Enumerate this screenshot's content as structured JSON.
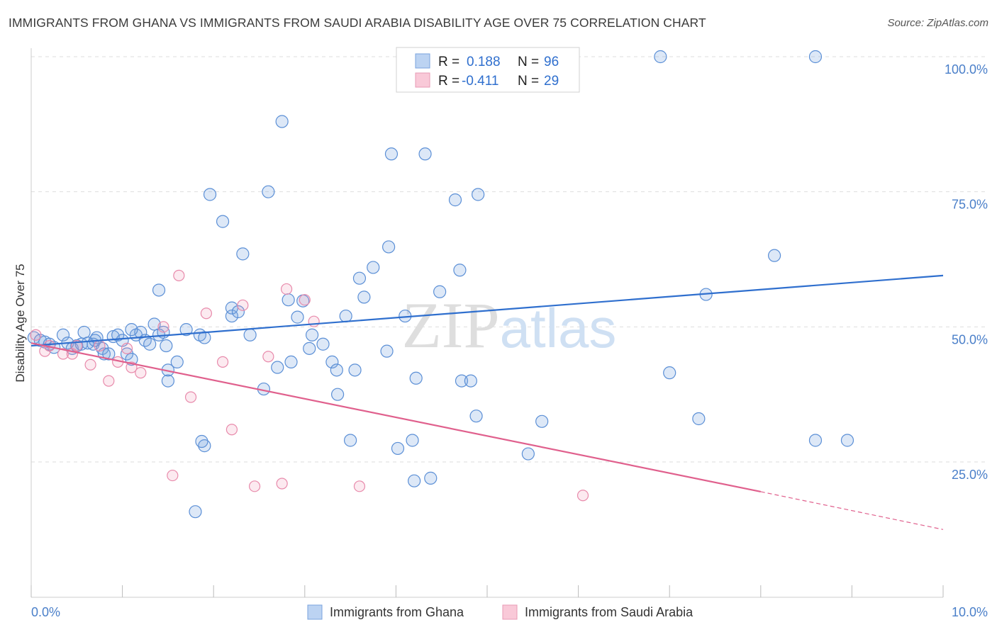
{
  "title": "IMMIGRANTS FROM GHANA VS IMMIGRANTS FROM SAUDI ARABIA DISABILITY AGE OVER 75 CORRELATION CHART",
  "source": "Source: ZipAtlas.com",
  "watermark": "ZIPatlas",
  "colors": {
    "ghana_fill": "rgba(120,165,225,0.25)",
    "ghana_stroke": "#5b8fd6",
    "ghana_line": "#2f6fce",
    "saudi_fill": "rgba(240,150,180,0.2)",
    "saudi_stroke": "#e88aab",
    "saudi_line": "#e0608d",
    "tick_text": "#4a7fc9",
    "grid": "#dddddd"
  },
  "legend": {
    "rows": [
      {
        "r_label": "R =",
        "r_value": "0.188",
        "n_label": "N =",
        "n_value": "96"
      },
      {
        "r_label": "R =",
        "r_value": "-0.411",
        "n_label": "N =",
        "n_value": "29"
      }
    ]
  },
  "bottom_legend": [
    "Immigrants from Ghana",
    "Immigrants from Saudi Arabia"
  ],
  "chart_data": {
    "type": "scatter",
    "title": "IMMIGRANTS FROM GHANA VS IMMIGRANTS FROM SAUDI ARABIA DISABILITY AGE OVER 75 CORRELATION CHART",
    "xlabel": "",
    "ylabel": "Disability Age Over 75",
    "xlim": [
      0,
      10
    ],
    "ylim": [
      0,
      103
    ],
    "x_tick_labels": [
      "0.0%",
      "10.0%"
    ],
    "y_tick_labels": [
      "25.0%",
      "50.0%",
      "75.0%",
      "100.0%"
    ],
    "y_ticks": [
      25,
      50,
      75,
      100
    ],
    "grid": true,
    "legend_position": "top-center",
    "series": [
      {
        "name": "Immigrants from Ghana",
        "R": 0.188,
        "N": 96,
        "trend": [
          [
            0.0,
            46.5
          ],
          [
            10.0,
            59.5
          ]
        ],
        "points": [
          [
            0.03,
            48.0
          ],
          [
            0.1,
            47.5
          ],
          [
            0.15,
            47.2
          ],
          [
            0.2,
            46.8
          ],
          [
            0.25,
            46.2
          ],
          [
            0.35,
            48.5
          ],
          [
            0.4,
            47.0
          ],
          [
            0.45,
            46.0
          ],
          [
            0.5,
            46.5
          ],
          [
            0.55,
            46.8
          ],
          [
            0.58,
            49.0
          ],
          [
            0.62,
            47.0
          ],
          [
            0.68,
            46.8
          ],
          [
            0.72,
            48.0
          ],
          [
            0.78,
            46.0
          ],
          [
            0.8,
            45.0
          ],
          [
            0.85,
            45.0
          ],
          [
            0.9,
            48.2
          ],
          [
            0.95,
            48.5
          ],
          [
            1.0,
            47.5
          ],
          [
            1.05,
            45.0
          ],
          [
            1.1,
            44.0
          ],
          [
            1.15,
            48.5
          ],
          [
            1.2,
            49.0
          ],
          [
            1.25,
            47.5
          ],
          [
            1.3,
            46.8
          ],
          [
            1.35,
            50.5
          ],
          [
            1.4,
            56.8
          ],
          [
            1.4,
            48.5
          ],
          [
            1.45,
            49.0
          ],
          [
            1.48,
            46.5
          ],
          [
            1.5,
            42.0
          ],
          [
            1.5,
            40.0
          ],
          [
            1.6,
            43.5
          ],
          [
            1.7,
            49.5
          ],
          [
            1.85,
            48.5
          ],
          [
            1.9,
            48.0
          ],
          [
            1.96,
            74.5
          ],
          [
            1.9,
            28.0
          ],
          [
            1.87,
            28.8
          ],
          [
            1.8,
            15.8
          ],
          [
            2.1,
            69.5
          ],
          [
            2.2,
            52.0
          ],
          [
            2.2,
            53.5
          ],
          [
            2.27,
            52.8
          ],
          [
            2.32,
            63.5
          ],
          [
            2.4,
            48.5
          ],
          [
            2.55,
            38.5
          ],
          [
            2.6,
            75.0
          ],
          [
            2.7,
            42.5
          ],
          [
            2.75,
            88.0
          ],
          [
            2.85,
            43.5
          ],
          [
            2.92,
            51.8
          ],
          [
            2.98,
            54.8
          ],
          [
            3.05,
            46.0
          ],
          [
            3.08,
            48.5
          ],
          [
            3.2,
            46.8
          ],
          [
            3.3,
            43.5
          ],
          [
            3.35,
            42.0
          ],
          [
            3.45,
            52.0
          ],
          [
            3.36,
            37.5
          ],
          [
            3.5,
            29.0
          ],
          [
            3.55,
            42.0
          ],
          [
            3.6,
            59.0
          ],
          [
            3.65,
            55.5
          ],
          [
            3.75,
            61.0
          ],
          [
            3.9,
            45.5
          ],
          [
            3.92,
            64.8
          ],
          [
            3.95,
            82.0
          ],
          [
            4.02,
            27.5
          ],
          [
            4.1,
            52.0
          ],
          [
            4.18,
            29.0
          ],
          [
            4.22,
            40.5
          ],
          [
            4.32,
            82.0
          ],
          [
            4.38,
            22.0
          ],
          [
            4.48,
            56.5
          ],
          [
            4.65,
            73.5
          ],
          [
            4.7,
            60.5
          ],
          [
            4.72,
            40.0
          ],
          [
            4.82,
            40.0
          ],
          [
            4.88,
            33.5
          ],
          [
            4.9,
            74.5
          ],
          [
            5.45,
            26.5
          ],
          [
            5.6,
            32.5
          ],
          [
            6.9,
            100.0
          ],
          [
            7.0,
            41.5
          ],
          [
            7.32,
            33.0
          ],
          [
            7.4,
            56.0
          ],
          [
            8.15,
            63.2
          ],
          [
            8.6,
            100.0
          ],
          [
            8.6,
            29.0
          ],
          [
            8.95,
            29.0
          ],
          [
            1.1,
            49.5
          ],
          [
            0.7,
            47.5
          ],
          [
            2.82,
            55.0
          ],
          [
            4.2,
            21.5
          ]
        ]
      },
      {
        "name": "Immigrants from Saudi Arabia",
        "R": -0.411,
        "N": 29,
        "trend": [
          [
            0.0,
            47.0
          ],
          [
            8.0,
            19.5
          ]
        ],
        "trend_dashed_to": [
          10.0,
          12.5
        ],
        "points": [
          [
            0.05,
            48.5
          ],
          [
            0.15,
            45.5
          ],
          [
            0.2,
            46.5
          ],
          [
            0.35,
            45.0
          ],
          [
            0.45,
            45.0
          ],
          [
            0.5,
            46.5
          ],
          [
            0.65,
            43.0
          ],
          [
            0.75,
            46.5
          ],
          [
            0.85,
            40.0
          ],
          [
            0.95,
            43.5
          ],
          [
            1.05,
            46.0
          ],
          [
            1.1,
            42.5
          ],
          [
            1.2,
            41.5
          ],
          [
            1.45,
            50.0
          ],
          [
            1.62,
            59.5
          ],
          [
            1.55,
            22.5
          ],
          [
            1.75,
            37.0
          ],
          [
            1.92,
            52.5
          ],
          [
            2.1,
            43.5
          ],
          [
            2.2,
            31.0
          ],
          [
            2.32,
            54.0
          ],
          [
            2.45,
            20.5
          ],
          [
            2.6,
            44.5
          ],
          [
            2.75,
            21.0
          ],
          [
            2.8,
            57.0
          ],
          [
            3.0,
            55.0
          ],
          [
            3.1,
            51.0
          ],
          [
            3.6,
            20.5
          ],
          [
            6.05,
            18.8
          ]
        ]
      }
    ]
  }
}
